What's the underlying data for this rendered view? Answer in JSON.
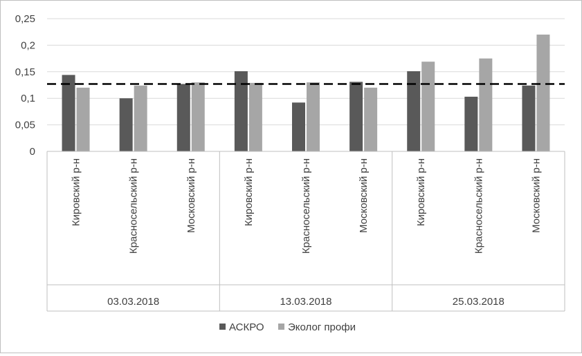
{
  "chart_data": {
    "type": "bar",
    "groups": [
      {
        "label": "03.03.2018",
        "categories": [
          "Кировский р-н",
          "Красносельский р-н",
          "Московский р-н"
        ]
      },
      {
        "label": "13.03.2018",
        "categories": [
          "Кировский р-н",
          "Красносельский р-н",
          "Московский р-н"
        ]
      },
      {
        "label": "25.03.2018",
        "categories": [
          "Кировский р-н",
          "Красносельский р-н",
          "Московский р-н"
        ]
      }
    ],
    "series": [
      {
        "name": "АСКРО",
        "color": "#595959",
        "values": [
          0.144,
          0.1,
          0.127,
          0.151,
          0.092,
          0.131,
          0.151,
          0.103,
          0.124
        ]
      },
      {
        "name": "Эколог профи",
        "color": "#a6a6a6",
        "values": [
          0.12,
          0.124,
          0.13,
          0.129,
          0.13,
          0.12,
          0.169,
          0.175,
          0.22
        ]
      }
    ],
    "reference_line": {
      "value": 0.127,
      "style": "dashed",
      "color": "#000000"
    },
    "yticks": [
      "0",
      "0,05",
      "0,1",
      "0,15",
      "0,2",
      "0,25"
    ],
    "ylim": [
      0,
      0.25
    ],
    "grid": true,
    "legend_position": "bottom"
  }
}
